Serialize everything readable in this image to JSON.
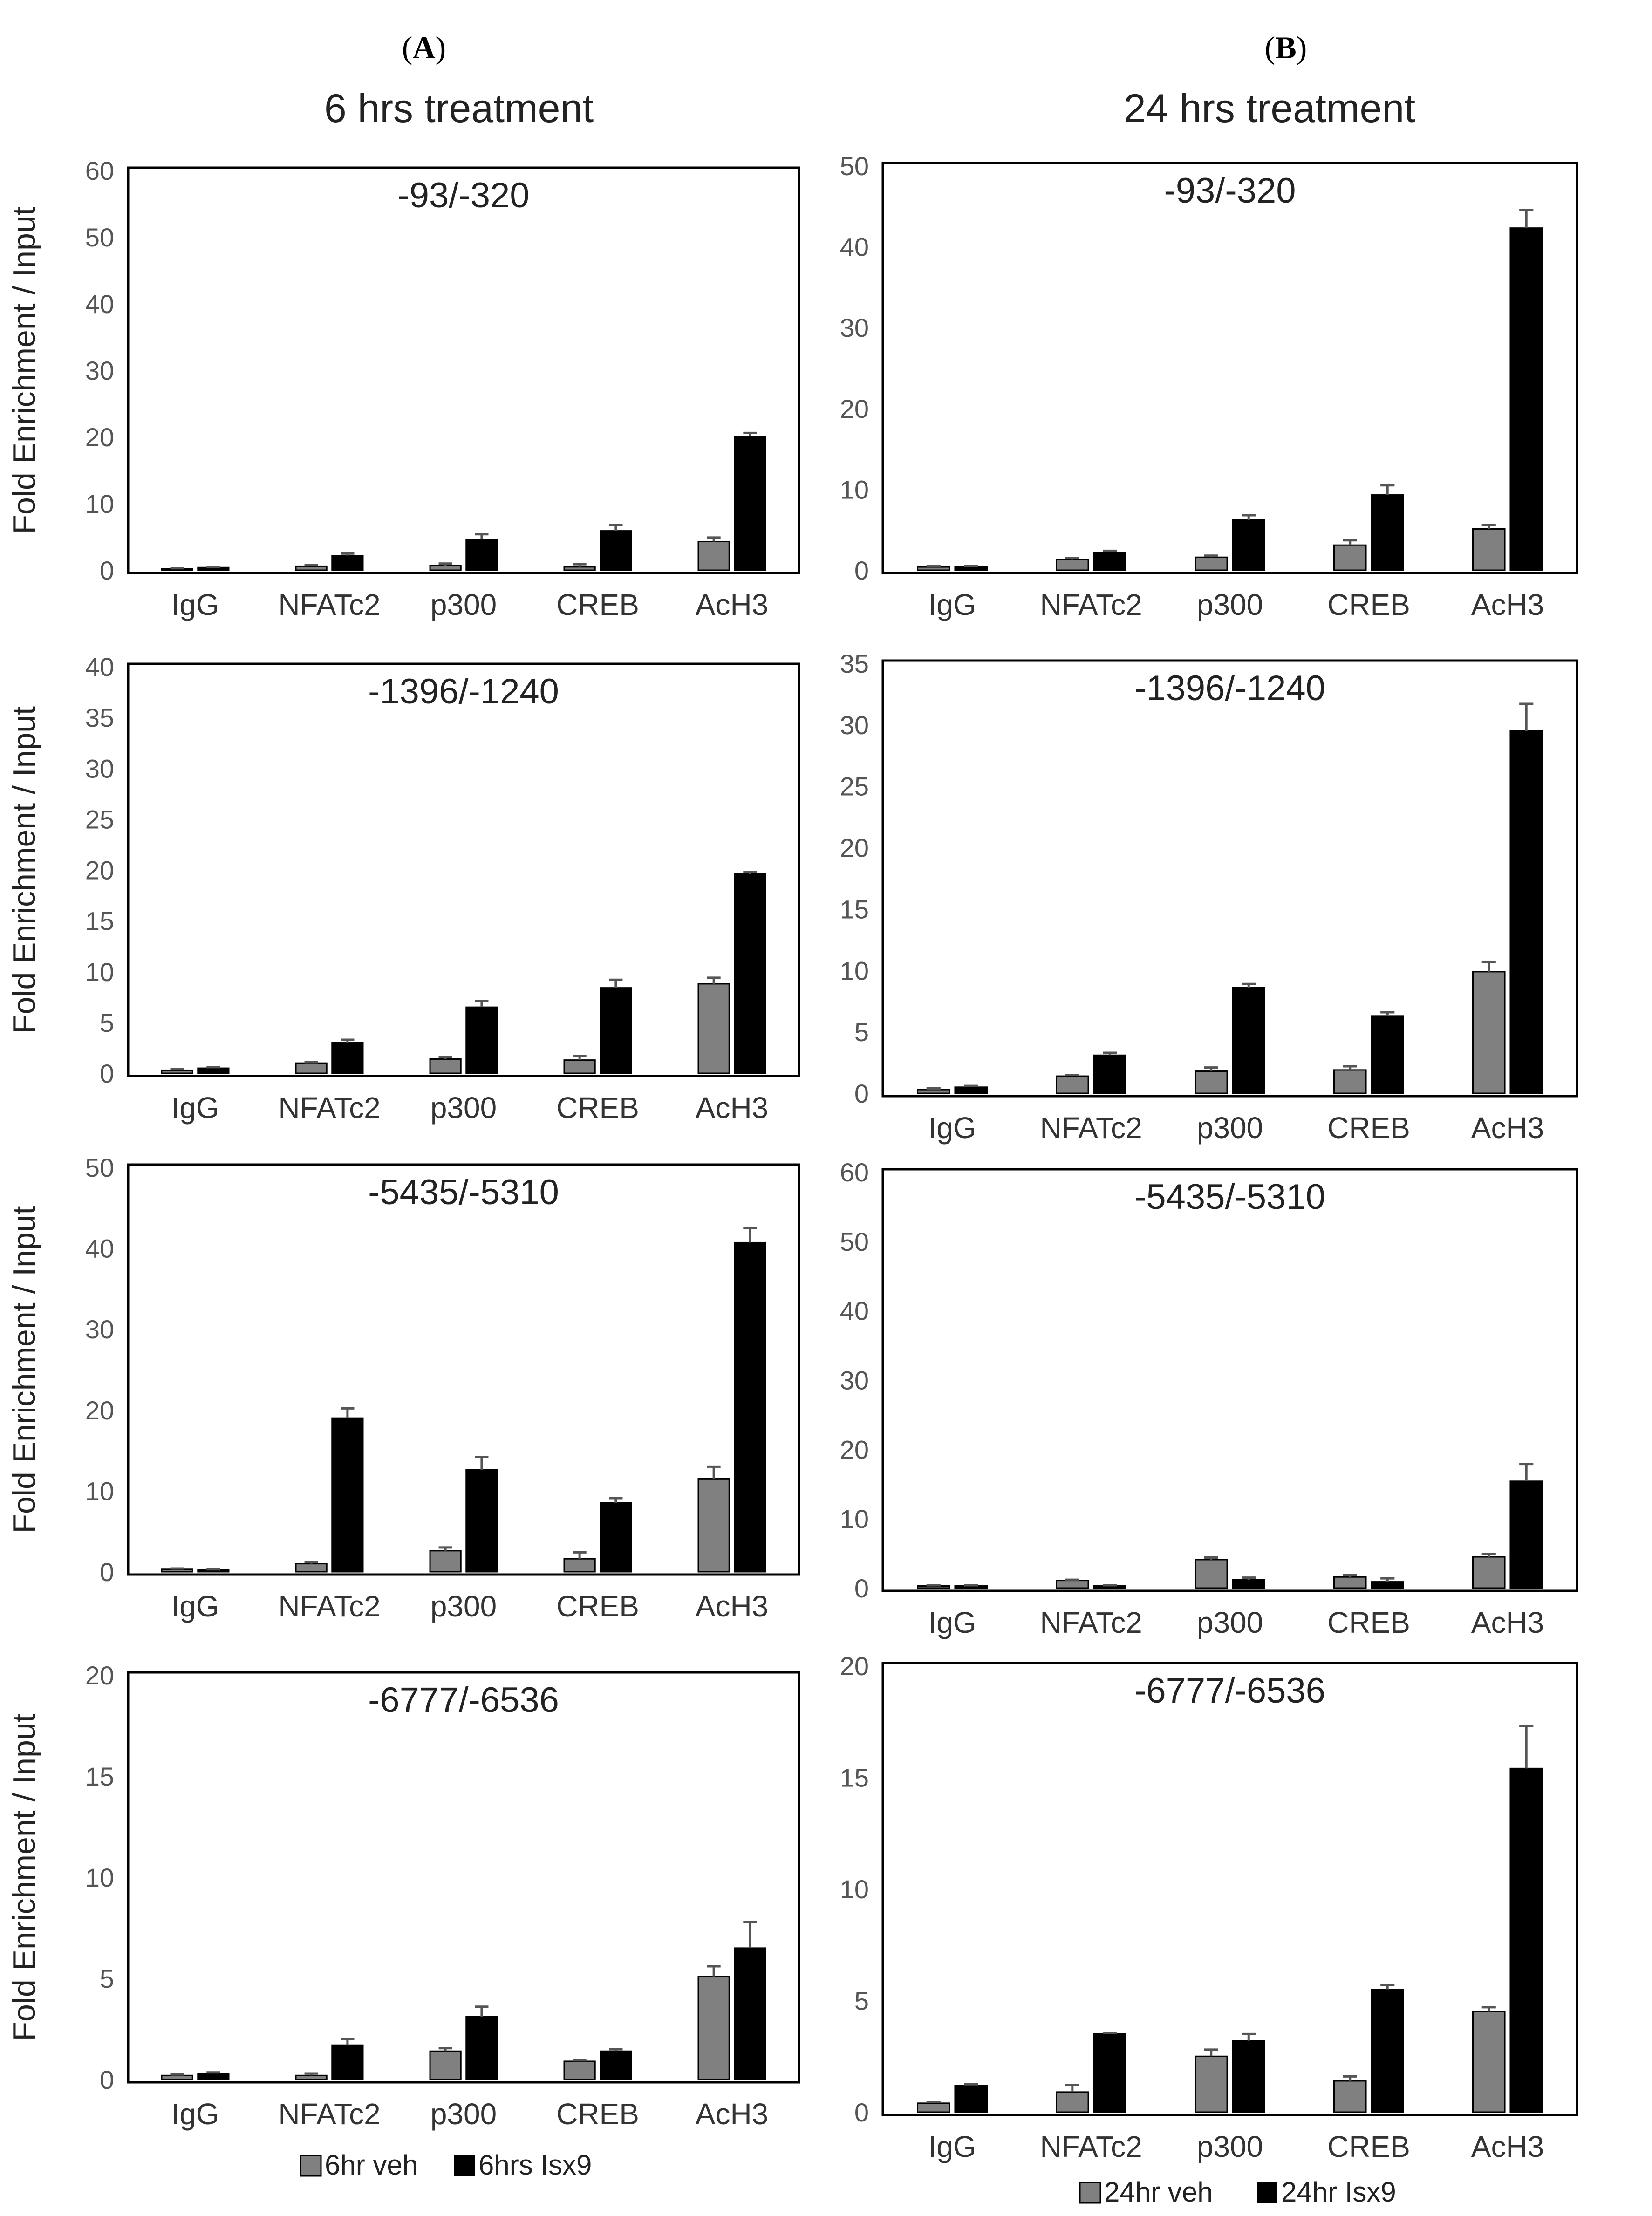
{
  "panel_labels": [
    "A",
    "B"
  ],
  "column_titles": [
    "6 hrs treatment",
    "24 hrs treatment"
  ],
  "colors": {
    "veh": "#808080",
    "isx": "#000000",
    "err": "#555555",
    "axis": "#000000"
  },
  "legends": [
    {
      "veh": "6hr veh",
      "isx": "6hrs Isx9"
    },
    {
      "veh": "24hr veh",
      "isx": "24hr Isx9"
    }
  ],
  "chart_data": [
    {
      "type": "bar",
      "column": 0,
      "title": "-93/-320",
      "ylabel": "Fold Enrichment / Input",
      "xlabel": "",
      "categories": [
        "IgG",
        "NFATc2",
        "p300",
        "CREB",
        "AcH3"
      ],
      "ylim": [
        0,
        60
      ],
      "yticks": [
        0,
        10,
        20,
        30,
        40,
        50,
        60
      ],
      "series": [
        {
          "name": "6hr veh",
          "values": [
            0.2,
            0.6,
            0.7,
            0.5,
            4.3
          ],
          "errors": [
            0.1,
            0.2,
            0.3,
            0.4,
            0.6
          ]
        },
        {
          "name": "6hrs Isx9",
          "values": [
            0.4,
            2.2,
            4.6,
            5.9,
            20.1
          ],
          "errors": [
            0.1,
            0.3,
            0.8,
            0.9,
            0.5
          ]
        }
      ]
    },
    {
      "type": "bar",
      "column": 1,
      "title": "-93/-320",
      "ylabel": "",
      "xlabel": "",
      "categories": [
        "IgG",
        "NFATc2",
        "p300",
        "CREB",
        "AcH3"
      ],
      "ylim": [
        0,
        50
      ],
      "yticks": [
        0,
        10,
        20,
        30,
        40,
        50
      ],
      "series": [
        {
          "name": "24hr veh",
          "values": [
            0.4,
            1.3,
            1.6,
            3.1,
            5.1
          ],
          "errors": [
            0.1,
            0.2,
            0.2,
            0.6,
            0.5
          ]
        },
        {
          "name": "24hr Isx9",
          "values": [
            0.4,
            2.2,
            6.2,
            9.3,
            42.3
          ],
          "errors": [
            0.1,
            0.2,
            0.6,
            1.2,
            2.2
          ]
        }
      ]
    },
    {
      "type": "bar",
      "column": 0,
      "title": "-1396/-1240",
      "ylabel": "Fold Enrichment / Input",
      "xlabel": "",
      "categories": [
        "IgG",
        "NFATc2",
        "p300",
        "CREB",
        "AcH3"
      ],
      "ylim": [
        0,
        40
      ],
      "yticks": [
        0,
        5,
        10,
        15,
        20,
        25,
        30,
        35,
        40
      ],
      "series": [
        {
          "name": "6hr veh",
          "values": [
            0.3,
            1.0,
            1.4,
            1.3,
            8.8
          ],
          "errors": [
            0.1,
            0.1,
            0.2,
            0.4,
            0.6
          ]
        },
        {
          "name": "6hrs Isx9",
          "values": [
            0.5,
            3.0,
            6.5,
            8.4,
            19.6
          ],
          "errors": [
            0.1,
            0.3,
            0.6,
            0.8,
            0.2
          ]
        }
      ]
    },
    {
      "type": "bar",
      "column": 1,
      "title": "-1396/-1240",
      "ylabel": "",
      "xlabel": "",
      "categories": [
        "IgG",
        "NFATc2",
        "p300",
        "CREB",
        "AcH3"
      ],
      "ylim": [
        0,
        35
      ],
      "yticks": [
        0,
        5,
        10,
        15,
        20,
        25,
        30,
        35
      ],
      "series": [
        {
          "name": "24hr veh",
          "values": [
            0.3,
            1.4,
            1.8,
            1.9,
            9.9
          ],
          "errors": [
            0.1,
            0.1,
            0.3,
            0.3,
            0.8
          ]
        },
        {
          "name": "24hr Isx9",
          "values": [
            0.5,
            3.1,
            8.6,
            6.3,
            29.5
          ],
          "errors": [
            0.1,
            0.2,
            0.3,
            0.3,
            2.2
          ]
        }
      ]
    },
    {
      "type": "bar",
      "column": 0,
      "title": "-5435/-5310",
      "ylabel": "Fold Enrichment / Input",
      "xlabel": "",
      "categories": [
        "IgG",
        "NFATc2",
        "p300",
        "CREB",
        "AcH3"
      ],
      "ylim": [
        0,
        50
      ],
      "yticks": [
        0,
        10,
        20,
        30,
        40,
        50
      ],
      "series": [
        {
          "name": "6hr veh",
          "values": [
            0.3,
            1.0,
            2.6,
            1.6,
            11.5
          ],
          "errors": [
            0.1,
            0.2,
            0.4,
            0.8,
            1.5
          ]
        },
        {
          "name": "6hrs Isx9",
          "values": [
            0.2,
            19.0,
            12.6,
            8.5,
            40.7
          ],
          "errors": [
            0.1,
            1.2,
            1.6,
            0.6,
            1.8
          ]
        }
      ]
    },
    {
      "type": "bar",
      "column": 1,
      "title": "-5435/-5310",
      "ylabel": "",
      "xlabel": "",
      "categories": [
        "IgG",
        "NFATc2",
        "p300",
        "CREB",
        "AcH3"
      ],
      "ylim": [
        0,
        60
      ],
      "yticks": [
        0,
        10,
        20,
        30,
        40,
        50,
        60
      ],
      "series": [
        {
          "name": "24hr veh",
          "values": [
            0.3,
            1.1,
            4.1,
            1.6,
            4.5
          ],
          "errors": [
            0.1,
            0.1,
            0.3,
            0.3,
            0.4
          ]
        },
        {
          "name": "24hr Isx9",
          "values": [
            0.3,
            0.3,
            1.2,
            0.9,
            15.4
          ],
          "errors": [
            0.1,
            0.1,
            0.3,
            0.5,
            2.5
          ]
        }
      ]
    },
    {
      "type": "bar",
      "column": 0,
      "title": "-6777/-6536",
      "ylabel": "Fold Enrichment / Input",
      "xlabel": "",
      "categories": [
        "IgG",
        "NFATc2",
        "p300",
        "CREB",
        "AcH3"
      ],
      "ylim": [
        0,
        20
      ],
      "yticks": [
        0,
        5,
        10,
        15,
        20
      ],
      "series": [
        {
          "name": "6hr veh",
          "values": [
            0.2,
            0.2,
            1.4,
            0.9,
            5.1
          ],
          "errors": [
            0.05,
            0.1,
            0.15,
            0.05,
            0.5
          ]
        },
        {
          "name": "6hrs Isx9",
          "values": [
            0.3,
            1.7,
            3.1,
            1.4,
            6.5
          ],
          "errors": [
            0.05,
            0.3,
            0.5,
            0.1,
            1.3
          ]
        }
      ]
    },
    {
      "type": "bar",
      "column": 1,
      "title": "-6777/-6536",
      "ylabel": "",
      "xlabel": "",
      "categories": [
        "IgG",
        "NFATc2",
        "p300",
        "CREB",
        "AcH3"
      ],
      "ylim": [
        0,
        20
      ],
      "yticks": [
        0,
        5,
        10,
        15,
        20
      ],
      "series": [
        {
          "name": "24hr veh",
          "values": [
            0.4,
            0.9,
            2.5,
            1.4,
            4.5
          ],
          "errors": [
            0.05,
            0.3,
            0.3,
            0.2,
            0.2
          ]
        },
        {
          "name": "24hr Isx9",
          "values": [
            1.2,
            3.5,
            3.2,
            5.5,
            15.4
          ],
          "errors": [
            0.05,
            0.05,
            0.3,
            0.2,
            1.9
          ]
        }
      ]
    }
  ]
}
